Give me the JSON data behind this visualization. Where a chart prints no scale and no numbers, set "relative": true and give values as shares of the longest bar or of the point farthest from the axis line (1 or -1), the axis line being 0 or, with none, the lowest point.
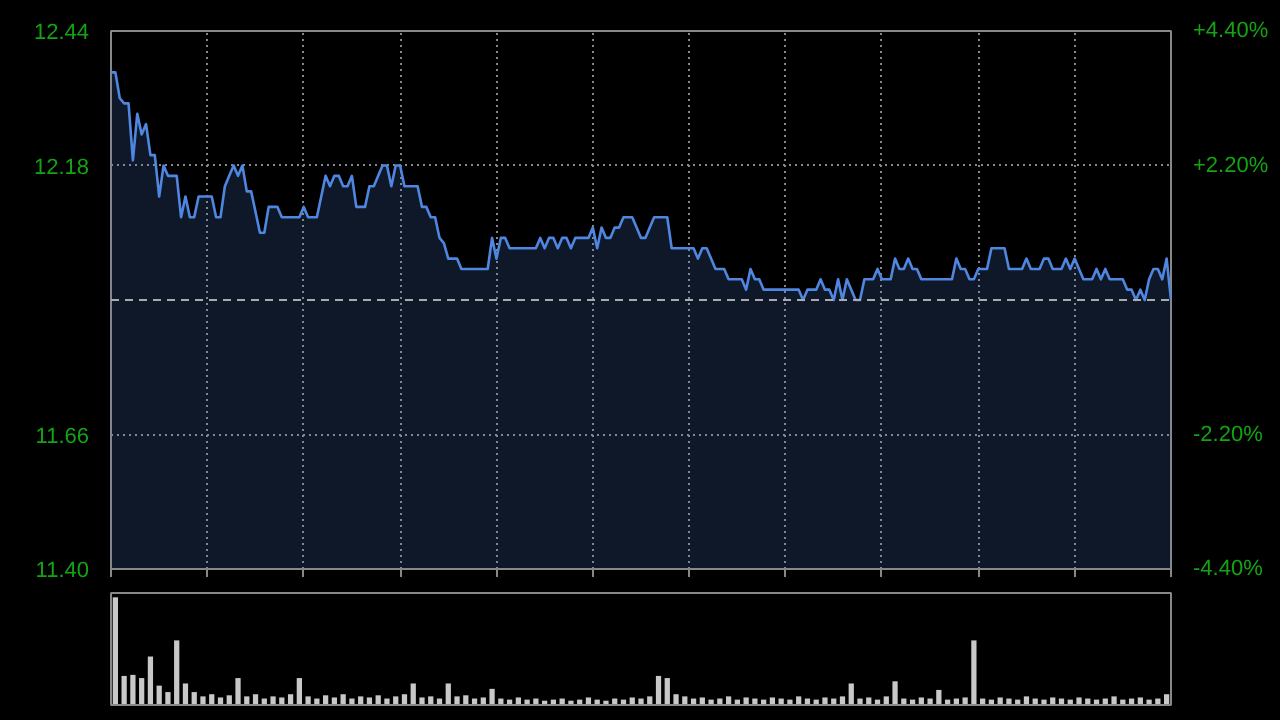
{
  "chart_data": [
    {
      "type": "area",
      "categories": [
        null,
        null,
        null,
        null,
        null,
        null,
        null,
        null,
        null,
        null,
        null,
        null,
        null,
        null,
        null,
        null,
        null,
        null,
        null,
        null,
        null,
        null,
        null,
        null,
        null,
        null,
        null,
        null,
        null,
        null,
        null,
        null,
        null,
        null,
        null,
        null,
        null,
        null,
        null,
        null,
        null,
        null,
        null,
        null,
        null,
        null,
        null,
        null,
        null,
        null,
        null,
        null,
        null,
        null,
        null,
        null,
        null,
        null,
        null,
        null,
        null,
        null,
        null,
        null,
        null,
        null,
        null,
        null,
        null,
        null,
        null,
        null,
        null,
        null,
        null,
        null,
        null,
        null,
        null,
        null,
        null,
        null,
        null,
        null,
        null,
        null,
        null,
        null,
        null,
        null,
        null,
        null,
        null,
        null,
        null,
        null,
        null,
        null,
        null,
        null,
        null,
        null,
        null,
        null,
        null,
        null,
        null,
        null,
        null,
        null,
        null,
        null,
        null,
        null,
        null,
        null,
        null,
        null,
        null,
        null,
        null,
        null,
        null,
        null,
        null,
        null,
        null,
        null,
        null,
        null,
        null,
        null,
        null,
        null,
        null,
        null,
        null,
        null,
        null,
        null,
        null,
        null,
        null,
        null,
        null,
        null,
        null,
        null,
        null,
        null,
        null,
        null,
        null,
        null,
        null,
        null,
        null,
        null,
        null,
        null,
        null,
        null,
        null,
        null,
        null,
        null,
        null,
        null,
        null,
        null,
        null,
        null,
        null,
        null,
        null,
        null,
        null,
        null,
        null,
        null,
        null,
        null,
        null,
        null,
        null,
        null,
        null,
        null,
        null,
        null,
        null,
        null,
        null,
        null,
        null,
        null,
        null,
        null,
        null,
        null,
        null,
        null,
        null,
        null,
        null,
        null,
        null,
        null,
        null,
        null,
        null,
        null,
        null,
        null,
        null,
        null,
        null,
        null,
        null,
        null,
        null,
        null,
        null,
        null,
        null,
        null,
        null,
        null,
        null,
        null,
        null,
        null,
        null,
        null,
        null,
        null,
        null,
        null,
        null,
        null,
        null,
        null,
        null
      ],
      "series": [
        {
          "color": "#4f86e0",
          "values": [
            12.36,
            12.36,
            12.31,
            12.3,
            12.3,
            12.19,
            12.28,
            12.24,
            12.26,
            12.2,
            12.2,
            12.12,
            12.18,
            12.16,
            12.16,
            12.16,
            12.08,
            12.12,
            12.08,
            12.08,
            12.12,
            12.12,
            12.12,
            12.12,
            12.08,
            12.08,
            12.14,
            12.16,
            12.18,
            12.16,
            12.18,
            12.13,
            12.13,
            12.09,
            12.05,
            12.05,
            12.1,
            12.1,
            12.1,
            12.08,
            12.08,
            12.08,
            12.08,
            12.08,
            12.1,
            12.08,
            12.08,
            12.08,
            12.12,
            12.16,
            12.14,
            12.16,
            12.16,
            12.14,
            12.14,
            12.16,
            12.1,
            12.1,
            12.1,
            12.14,
            12.14,
            12.16,
            12.18,
            12.18,
            12.14,
            12.18,
            12.18,
            12.14,
            12.14,
            12.14,
            12.14,
            12.1,
            12.1,
            12.08,
            12.08,
            12.04,
            12.03,
            12.0,
            12.0,
            12.0,
            11.98,
            11.98,
            11.98,
            11.98,
            11.98,
            11.98,
            11.98,
            12.04,
            12.0,
            12.04,
            12.04,
            12.02,
            12.02,
            12.02,
            12.02,
            12.02,
            12.02,
            12.02,
            12.04,
            12.02,
            12.04,
            12.04,
            12.02,
            12.04,
            12.04,
            12.02,
            12.04,
            12.04,
            12.04,
            12.04,
            12.06,
            12.02,
            12.06,
            12.04,
            12.04,
            12.06,
            12.06,
            12.08,
            12.08,
            12.08,
            12.06,
            12.04,
            12.04,
            12.06,
            12.08,
            12.08,
            12.08,
            12.08,
            12.02,
            12.02,
            12.02,
            12.02,
            12.02,
            12.02,
            12.0,
            12.02,
            12.02,
            12.0,
            11.98,
            11.98,
            11.98,
            11.96,
            11.96,
            11.96,
            11.96,
            11.94,
            11.98,
            11.96,
            11.96,
            11.94,
            11.94,
            11.94,
            11.94,
            11.94,
            11.94,
            11.94,
            11.94,
            11.94,
            11.92,
            11.94,
            11.94,
            11.94,
            11.96,
            11.94,
            11.94,
            11.92,
            11.96,
            11.92,
            11.96,
            11.94,
            11.92,
            11.92,
            11.96,
            11.96,
            11.96,
            11.98,
            11.96,
            11.96,
            11.96,
            12.0,
            11.98,
            11.98,
            12.0,
            11.98,
            11.98,
            11.96,
            11.96,
            11.96,
            11.96,
            11.96,
            11.96,
            11.96,
            11.96,
            12.0,
            11.98,
            11.98,
            11.96,
            11.96,
            11.98,
            11.98,
            11.98,
            12.02,
            12.02,
            12.02,
            12.02,
            11.98,
            11.98,
            11.98,
            11.98,
            12.0,
            11.98,
            11.98,
            11.98,
            12.0,
            12.0,
            11.98,
            11.98,
            11.98,
            12.0,
            11.98,
            12.0,
            11.98,
            11.96,
            11.96,
            11.96,
            11.98,
            11.96,
            11.98,
            11.96,
            11.96,
            11.96,
            11.96,
            11.94,
            11.94,
            11.92,
            11.94,
            11.92,
            11.96,
            11.98,
            11.98,
            11.96,
            12.0,
            11.92
          ]
        }
      ],
      "ylim": [
        11.4,
        12.44
      ],
      "yticks": [
        {
          "value": 11.4,
          "label": "11.40"
        },
        {
          "value": 11.66,
          "label": "11.66"
        },
        {
          "value": 12.18,
          "label": "12.18"
        },
        {
          "value": 12.44,
          "label": "12.44"
        }
      ],
      "y2lim": [
        -4.4,
        4.4
      ],
      "y2ticks": [
        {
          "value": -4.4,
          "label": "-4.40%"
        },
        {
          "value": -2.2,
          "label": "-2.20%"
        },
        {
          "value": 2.2,
          "label": "+2.20%"
        },
        {
          "value": 4.4,
          "label": "+4.40%"
        }
      ],
      "ref_lines": [
        {
          "axis": "y",
          "value": 11.92,
          "line_style": "dashed",
          "color": "#aaaaaa"
        }
      ],
      "grid": true
    },
    {
      "type": "bar",
      "relative": true,
      "color": "#c8c8c8",
      "categories": [
        null,
        null,
        null,
        null,
        null,
        null,
        null,
        null,
        null,
        null,
        null,
        null,
        null,
        null,
        null,
        null,
        null,
        null,
        null,
        null,
        null,
        null,
        null,
        null,
        null,
        null,
        null,
        null,
        null,
        null,
        null,
        null,
        null,
        null,
        null,
        null,
        null,
        null,
        null,
        null,
        null,
        null,
        null,
        null,
        null,
        null,
        null,
        null,
        null,
        null,
        null,
        null,
        null,
        null,
        null,
        null,
        null,
        null,
        null,
        null,
        null,
        null,
        null,
        null,
        null,
        null,
        null,
        null,
        null,
        null,
        null,
        null,
        null,
        null,
        null,
        null,
        null,
        null,
        null,
        null,
        null,
        null,
        null,
        null,
        null,
        null,
        null,
        null,
        null,
        null,
        null,
        null,
        null,
        null,
        null,
        null,
        null,
        null,
        null,
        null,
        null,
        null,
        null,
        null,
        null,
        null,
        null,
        null,
        null,
        null,
        null,
        null,
        null,
        null,
        null,
        null,
        null,
        null,
        null,
        null,
        null
      ],
      "values": [
        1.0,
        0.27,
        0.28,
        0.25,
        0.45,
        0.18,
        0.12,
        0.6,
        0.2,
        0.12,
        0.08,
        0.1,
        0.07,
        0.09,
        0.25,
        0.08,
        0.1,
        0.06,
        0.08,
        0.07,
        0.1,
        0.25,
        0.08,
        0.06,
        0.09,
        0.07,
        0.1,
        0.06,
        0.08,
        0.07,
        0.09,
        0.06,
        0.08,
        0.1,
        0.2,
        0.07,
        0.08,
        0.06,
        0.2,
        0.08,
        0.09,
        0.06,
        0.07,
        0.15,
        0.06,
        0.05,
        0.07,
        0.05,
        0.06,
        0.04,
        0.05,
        0.06,
        0.04,
        0.05,
        0.07,
        0.05,
        0.04,
        0.06,
        0.05,
        0.07,
        0.06,
        0.08,
        0.27,
        0.25,
        0.1,
        0.08,
        0.06,
        0.07,
        0.05,
        0.06,
        0.08,
        0.05,
        0.07,
        0.06,
        0.05,
        0.07,
        0.06,
        0.05,
        0.08,
        0.06,
        0.05,
        0.07,
        0.06,
        0.08,
        0.2,
        0.06,
        0.07,
        0.05,
        0.08,
        0.22,
        0.06,
        0.05,
        0.07,
        0.06,
        0.14,
        0.05,
        0.06,
        0.07,
        0.6,
        0.06,
        0.05,
        0.07,
        0.06,
        0.05,
        0.08,
        0.06,
        0.05,
        0.07,
        0.06,
        0.05,
        0.07,
        0.06,
        0.05,
        0.06,
        0.08,
        0.05,
        0.06,
        0.07,
        0.05,
        0.06,
        0.1
      ]
    }
  ]
}
